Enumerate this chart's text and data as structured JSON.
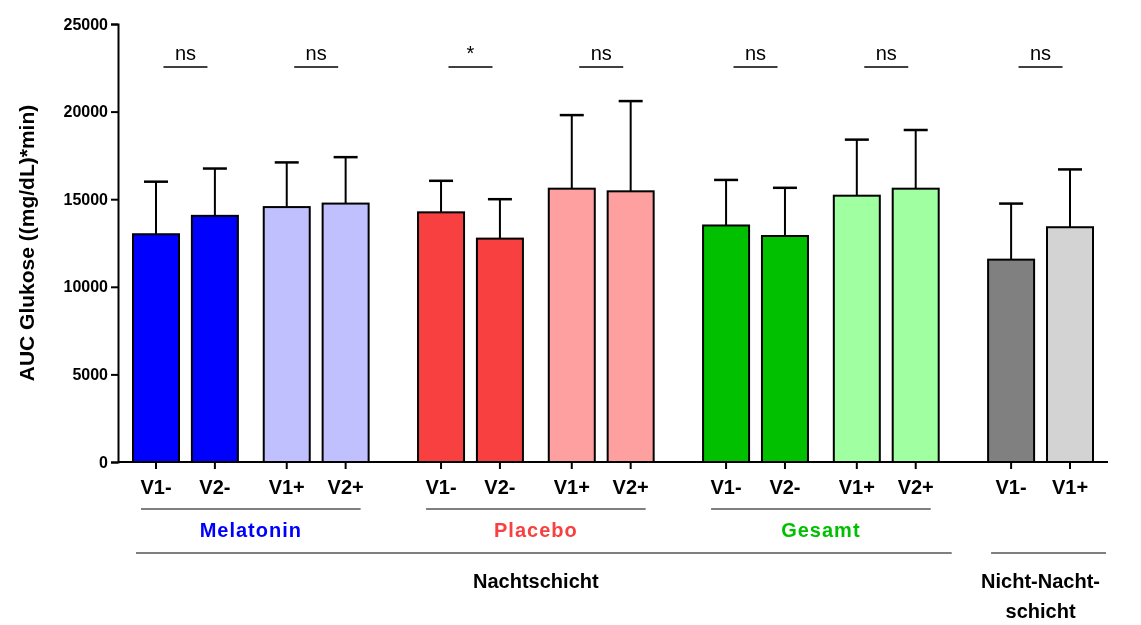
{
  "chart_data": {
    "type": "bar",
    "ylabel": "AUC Glukose ((mg/dL)*min)",
    "categories": [
      "V1-",
      "V2-",
      "V1+",
      "V2+",
      "V1-",
      "V2-",
      "V1+",
      "V2+",
      "V1-",
      "V2-",
      "V1+",
      "V2+",
      "V1-",
      "V1+"
    ],
    "values": [
      13000,
      14050,
      14550,
      14750,
      14250,
      12750,
      15600,
      15450,
      13500,
      12900,
      15200,
      15600,
      11550,
      13400
    ],
    "errors": [
      [
        13000,
        16000
      ],
      [
        14050,
        16750
      ],
      [
        14550,
        17100
      ],
      [
        14750,
        17400
      ],
      [
        14250,
        16050
      ],
      [
        12750,
        15000
      ],
      [
        15600,
        19800
      ],
      [
        15450,
        20600
      ],
      [
        13500,
        16100
      ],
      [
        12900,
        15650
      ],
      [
        15200,
        18400
      ],
      [
        15600,
        18950
      ],
      [
        11550,
        14750
      ],
      [
        13400,
        16700
      ]
    ],
    "colors": [
      "#0000ff",
      "#0000ff",
      "#c0c0ff",
      "#c0c0ff",
      "#f84040",
      "#f84040",
      "#ffa0a0",
      "#ffa0a0",
      "#00c000",
      "#00c000",
      "#a0ffa0",
      "#a0ffa0",
      "#808080",
      "#d3d3d3"
    ],
    "ylim": [
      0,
      25000
    ],
    "yticks": [
      0,
      5000,
      10000,
      15000,
      20000,
      25000
    ],
    "annotations": [
      "ns",
      "ns",
      "*",
      "ns",
      "ns",
      "ns",
      "ns",
      "Melatonin",
      "Placebo",
      "Gesamt",
      "Nachtschicht",
      "Nicht-Nacht-schicht"
    ]
  }
}
